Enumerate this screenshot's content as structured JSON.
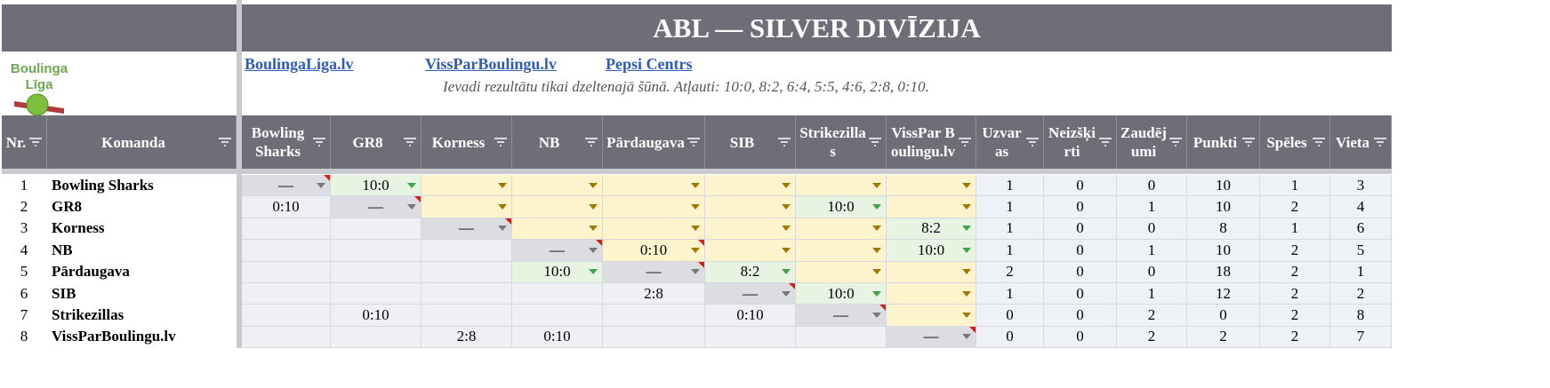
{
  "header": {
    "title": "ABL — SILVER DIVĪZIJA",
    "logo": [
      "Boulinga",
      "Līga"
    ],
    "links": [
      "BoulingaLiga.lv",
      "VissParBoulingu.lv",
      "Pepsi Centrs"
    ],
    "note": "Ievadi rezultātu tikai dzeltenajā šūnā. Atļauti: 10:0, 8:2, 6:4, 5:5, 4:6, 2:8, 0:10."
  },
  "table": {
    "columns": [
      "Nr.",
      "Komanda",
      "Bowling Sharks",
      "GR8",
      "Korness",
      "NB",
      "Pārdaugava",
      "SIB",
      "Strikezillas",
      "VissPar Boulingu.lv",
      "Uzvaras",
      "Neizšķirti",
      "Zaudējumi",
      "Punkti",
      "Spēles",
      "Vieta"
    ],
    "rows": [
      {
        "nr": "1",
        "team": "Bowling Sharks",
        "results": [
          "—",
          "10:0",
          null,
          null,
          null,
          null,
          null,
          null
        ],
        "kinds": [
          "self",
          "entered",
          "entry",
          "entry",
          "entry",
          "entry",
          "entry",
          "entry"
        ],
        "stats": [
          "1",
          "0",
          "0",
          "10",
          "1",
          "3"
        ]
      },
      {
        "nr": "2",
        "team": "GR8",
        "results": [
          "0:10",
          "—",
          null,
          null,
          null,
          null,
          "10:0",
          null
        ],
        "kinds": [
          "mirror",
          "self",
          "entry",
          "entry",
          "entry",
          "entry",
          "entered",
          "entry"
        ],
        "stats": [
          "1",
          "0",
          "1",
          "10",
          "2",
          "4"
        ]
      },
      {
        "nr": "3",
        "team": "Korness",
        "results": [
          null,
          null,
          "—",
          null,
          null,
          null,
          null,
          "8:2"
        ],
        "kinds": [
          "mirror",
          "mirror",
          "self",
          "entry",
          "entry",
          "entry",
          "entry",
          "entered"
        ],
        "stats": [
          "1",
          "0",
          "0",
          "8",
          "1",
          "6"
        ]
      },
      {
        "nr": "4",
        "team": "NB",
        "results": [
          null,
          null,
          null,
          "—",
          "0:10",
          null,
          null,
          "10:0"
        ],
        "kinds": [
          "mirror",
          "mirror",
          "mirror",
          "self",
          "entry",
          "entry",
          "entry",
          "entered"
        ],
        "stats": [
          "1",
          "0",
          "1",
          "10",
          "2",
          "5"
        ]
      },
      {
        "nr": "5",
        "team": "Pārdaugava",
        "results": [
          null,
          null,
          null,
          "10:0",
          "—",
          "8:2",
          null,
          null
        ],
        "kinds": [
          "mirror",
          "mirror",
          "mirror",
          "entered",
          "self",
          "entered",
          "entry",
          "entry"
        ],
        "stats": [
          "2",
          "0",
          "0",
          "18",
          "2",
          "1"
        ]
      },
      {
        "nr": "6",
        "team": "SIB",
        "results": [
          null,
          null,
          null,
          null,
          "2:8",
          "—",
          "10:0",
          null
        ],
        "kinds": [
          "mirror",
          "mirror",
          "mirror",
          "mirror",
          "mirror",
          "self",
          "entered",
          "entry"
        ],
        "stats": [
          "1",
          "0",
          "1",
          "12",
          "2",
          "2"
        ]
      },
      {
        "nr": "7",
        "team": "Strikezillas",
        "results": [
          null,
          "0:10",
          null,
          null,
          null,
          "0:10",
          "—",
          null
        ],
        "kinds": [
          "mirror",
          "mirror",
          "mirror",
          "mirror",
          "mirror",
          "mirror",
          "self",
          "entry"
        ],
        "stats": [
          "0",
          "0",
          "2",
          "0",
          "2",
          "8"
        ]
      },
      {
        "nr": "8",
        "team": "VissParBoulingu.lv",
        "results": [
          null,
          null,
          "2:8",
          "0:10",
          null,
          null,
          null,
          "—"
        ],
        "kinds": [
          "mirror",
          "mirror",
          "mirror",
          "mirror",
          "mirror",
          "mirror",
          "mirror",
          "self"
        ],
        "stats": [
          "0",
          "0",
          "2",
          "2",
          "2",
          "7"
        ]
      }
    ]
  }
}
